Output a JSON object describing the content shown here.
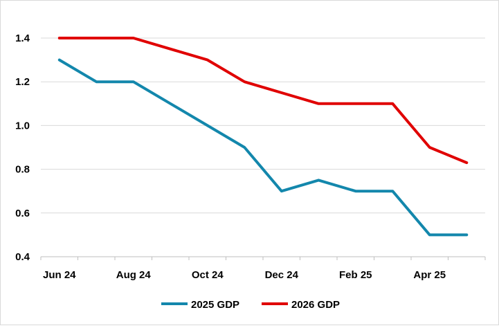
{
  "chart_data": {
    "type": "line",
    "title": "",
    "xlabel": "",
    "ylabel": "",
    "ylim": [
      0.4,
      1.4
    ],
    "yticks": [
      "0.4",
      "0.6",
      "0.8",
      "1.0",
      "1.2",
      "1.4"
    ],
    "x": [
      "Jun 24",
      "Jul 24",
      "Aug 24",
      "Sep 24",
      "Oct 24",
      "Nov 24",
      "Dec 24",
      "Jan 25",
      "Feb 25",
      "Mar 25",
      "Apr 25",
      "May 25"
    ],
    "xtick_labels": [
      "Jun 24",
      "Aug 24",
      "Oct 24",
      "Dec 24",
      "Feb 25",
      "Apr 25"
    ],
    "grid": true,
    "legend_position": "bottom",
    "series": [
      {
        "name": "2025 GDP",
        "color": "#1387ac",
        "values": [
          1.3,
          1.2,
          1.2,
          1.1,
          1.0,
          0.9,
          0.7,
          0.75,
          0.7,
          0.7,
          0.5,
          0.5
        ]
      },
      {
        "name": "2026 GDP",
        "color": "#e00000",
        "values": [
          1.4,
          1.4,
          1.4,
          1.35,
          1.3,
          1.2,
          1.15,
          1.1,
          1.1,
          1.1,
          0.9,
          0.83
        ]
      }
    ]
  }
}
